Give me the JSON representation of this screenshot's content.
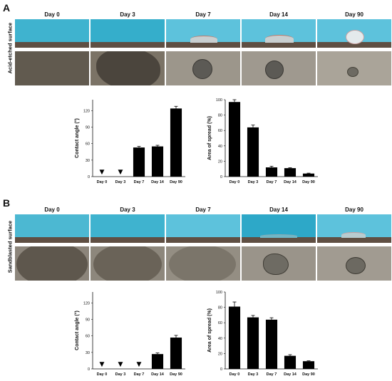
{
  "panels": [
    {
      "letter": "A",
      "surface": "Acid-etched surface",
      "days": [
        "Day 0",
        "Day 3",
        "Day 7",
        "Day 14",
        "Day 90"
      ]
    },
    {
      "letter": "B",
      "surface": "Sandblasted surface",
      "days": [
        "Day 0",
        "Day 3",
        "Day 7",
        "Day 14",
        "Day 90"
      ]
    }
  ],
  "chart_data": [
    {
      "type": "bar",
      "panel": "A",
      "categories": [
        "Day 0",
        "Day 3",
        "Day 7",
        "Day 14",
        "Day 90"
      ],
      "values": [
        null,
        null,
        53,
        55,
        124
      ],
      "errors": [
        0,
        0,
        2,
        2,
        4
      ],
      "markers": [
        "▼",
        "▼",
        "",
        "",
        ""
      ],
      "title": "",
      "xlabel": "",
      "ylabel": "Contact angle (°)",
      "ylim": [
        0,
        140
      ],
      "yticks": [
        0,
        30,
        60,
        90,
        120
      ],
      "ytick_labels": [
        "0",
        "30",
        "60",
        "90",
        "120"
      ],
      "grid": false
    },
    {
      "type": "bar",
      "panel": "A",
      "categories": [
        "Day 0",
        "Day 3",
        "Day 7",
        "Day 14",
        "Day 90"
      ],
      "values": [
        97,
        64,
        12,
        11,
        4
      ],
      "errors": [
        3,
        3,
        1.5,
        0.5,
        0.5
      ],
      "markers": [
        "",
        "",
        "",
        "",
        ""
      ],
      "title": "",
      "xlabel": "",
      "ylabel": "Area of spread (%)",
      "ylim": [
        0,
        100
      ],
      "yticks": [
        0,
        20,
        40,
        60,
        80,
        100
      ],
      "ytick_labels": [
        "0",
        "20",
        "40",
        "60",
        "80",
        "100"
      ],
      "grid": false
    },
    {
      "type": "bar",
      "panel": "B",
      "categories": [
        "Day 0",
        "Day 3",
        "Day 7",
        "Day 14",
        "Day 90"
      ],
      "values": [
        null,
        null,
        null,
        27,
        57
      ],
      "errors": [
        0,
        0,
        0,
        2,
        4
      ],
      "markers": [
        "▼",
        "▼",
        "▼",
        "",
        ""
      ],
      "title": "",
      "xlabel": "",
      "ylabel": "Contact angle (°)",
      "ylim": [
        0,
        140
      ],
      "yticks": [
        0,
        30,
        60,
        90,
        120
      ],
      "ytick_labels": [
        "0",
        "30",
        "60",
        "90",
        "120"
      ],
      "grid": false
    },
    {
      "type": "bar",
      "panel": "B",
      "categories": [
        "Day 0",
        "Day 3",
        "Day 7",
        "Day 14",
        "Day 90"
      ],
      "values": [
        81,
        67,
        64,
        17,
        10
      ],
      "errors": [
        6,
        2.5,
        2.5,
        1.5,
        0.5
      ],
      "markers": [
        "",
        "",
        "",
        "",
        ""
      ],
      "title": "",
      "xlabel": "",
      "ylabel": "Area of spread (%)",
      "ylim": [
        0,
        100
      ],
      "yticks": [
        0,
        20,
        40,
        60,
        80,
        100
      ],
      "ytick_labels": [
        "0",
        "20",
        "40",
        "60",
        "80",
        "100"
      ],
      "grid": false
    }
  ]
}
